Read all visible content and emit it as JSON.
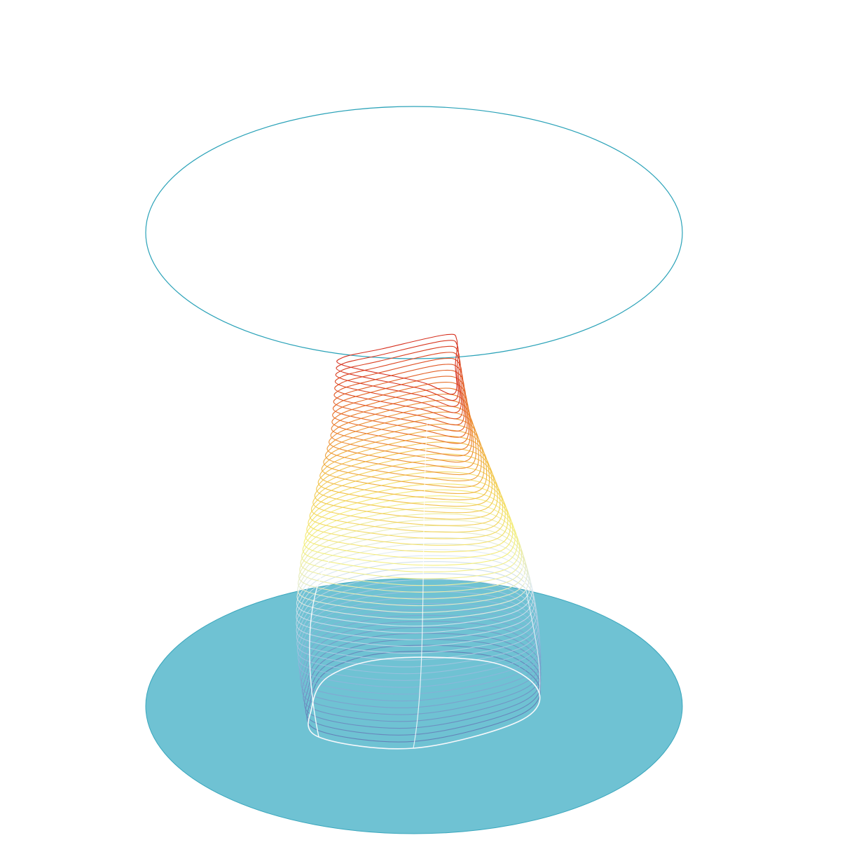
{
  "scene": {
    "colors": {
      "background": "#ffffff",
      "base_fill": "#6fc2d3",
      "base_stroke": "#3aa7bd",
      "top_ring_stroke": "#2aa2b8",
      "highlight": "#ffffff"
    },
    "layers": {
      "count": 55,
      "color_stops": [
        "#5b6fae",
        "#8fb5dc",
        "#dde9ee",
        "#f4ef7a",
        "#f2c24a",
        "#ea7a2c",
        "#d62f1e"
      ]
    }
  }
}
